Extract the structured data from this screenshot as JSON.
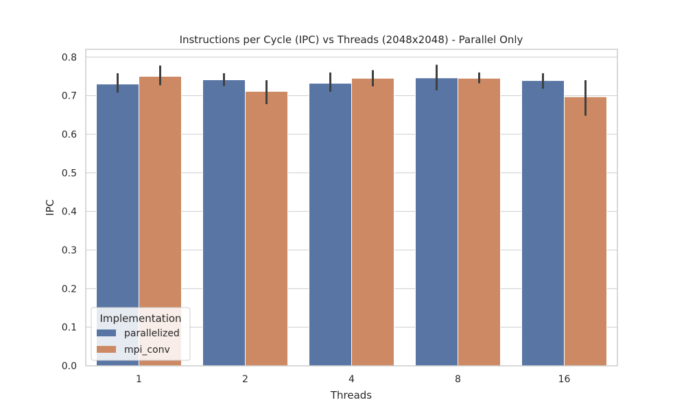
{
  "chart_data": {
    "type": "bar",
    "title": "Instructions per Cycle (IPC) vs Threads (2048x2048) - Parallel Only",
    "xlabel": "Threads",
    "ylabel": "IPC",
    "categories": [
      "1",
      "2",
      "4",
      "8",
      "16"
    ],
    "ylim": [
      0,
      0.82
    ],
    "yticks": [
      0.0,
      0.1,
      0.2,
      0.3,
      0.4,
      0.5,
      0.6,
      0.7,
      0.8
    ],
    "ytick_labels": [
      "0.0",
      "0.1",
      "0.2",
      "0.3",
      "0.4",
      "0.5",
      "0.6",
      "0.7",
      "0.8"
    ],
    "grid": true,
    "legend": {
      "title": "Implementation",
      "placement": "lower-left"
    },
    "series": [
      {
        "name": "parallelized",
        "color": "#5875a4",
        "values": [
          0.73,
          0.741,
          0.732,
          0.746,
          0.739
        ],
        "err_low": [
          0.708,
          0.725,
          0.71,
          0.714,
          0.718
        ],
        "err_high": [
          0.758,
          0.758,
          0.76,
          0.78,
          0.758
        ]
      },
      {
        "name": "mpi_conv",
        "color": "#cc8963",
        "values": [
          0.75,
          0.711,
          0.745,
          0.745,
          0.697
        ],
        "err_low": [
          0.727,
          0.678,
          0.724,
          0.732,
          0.648
        ],
        "err_high": [
          0.778,
          0.74,
          0.766,
          0.76,
          0.74
        ]
      }
    ]
  }
}
